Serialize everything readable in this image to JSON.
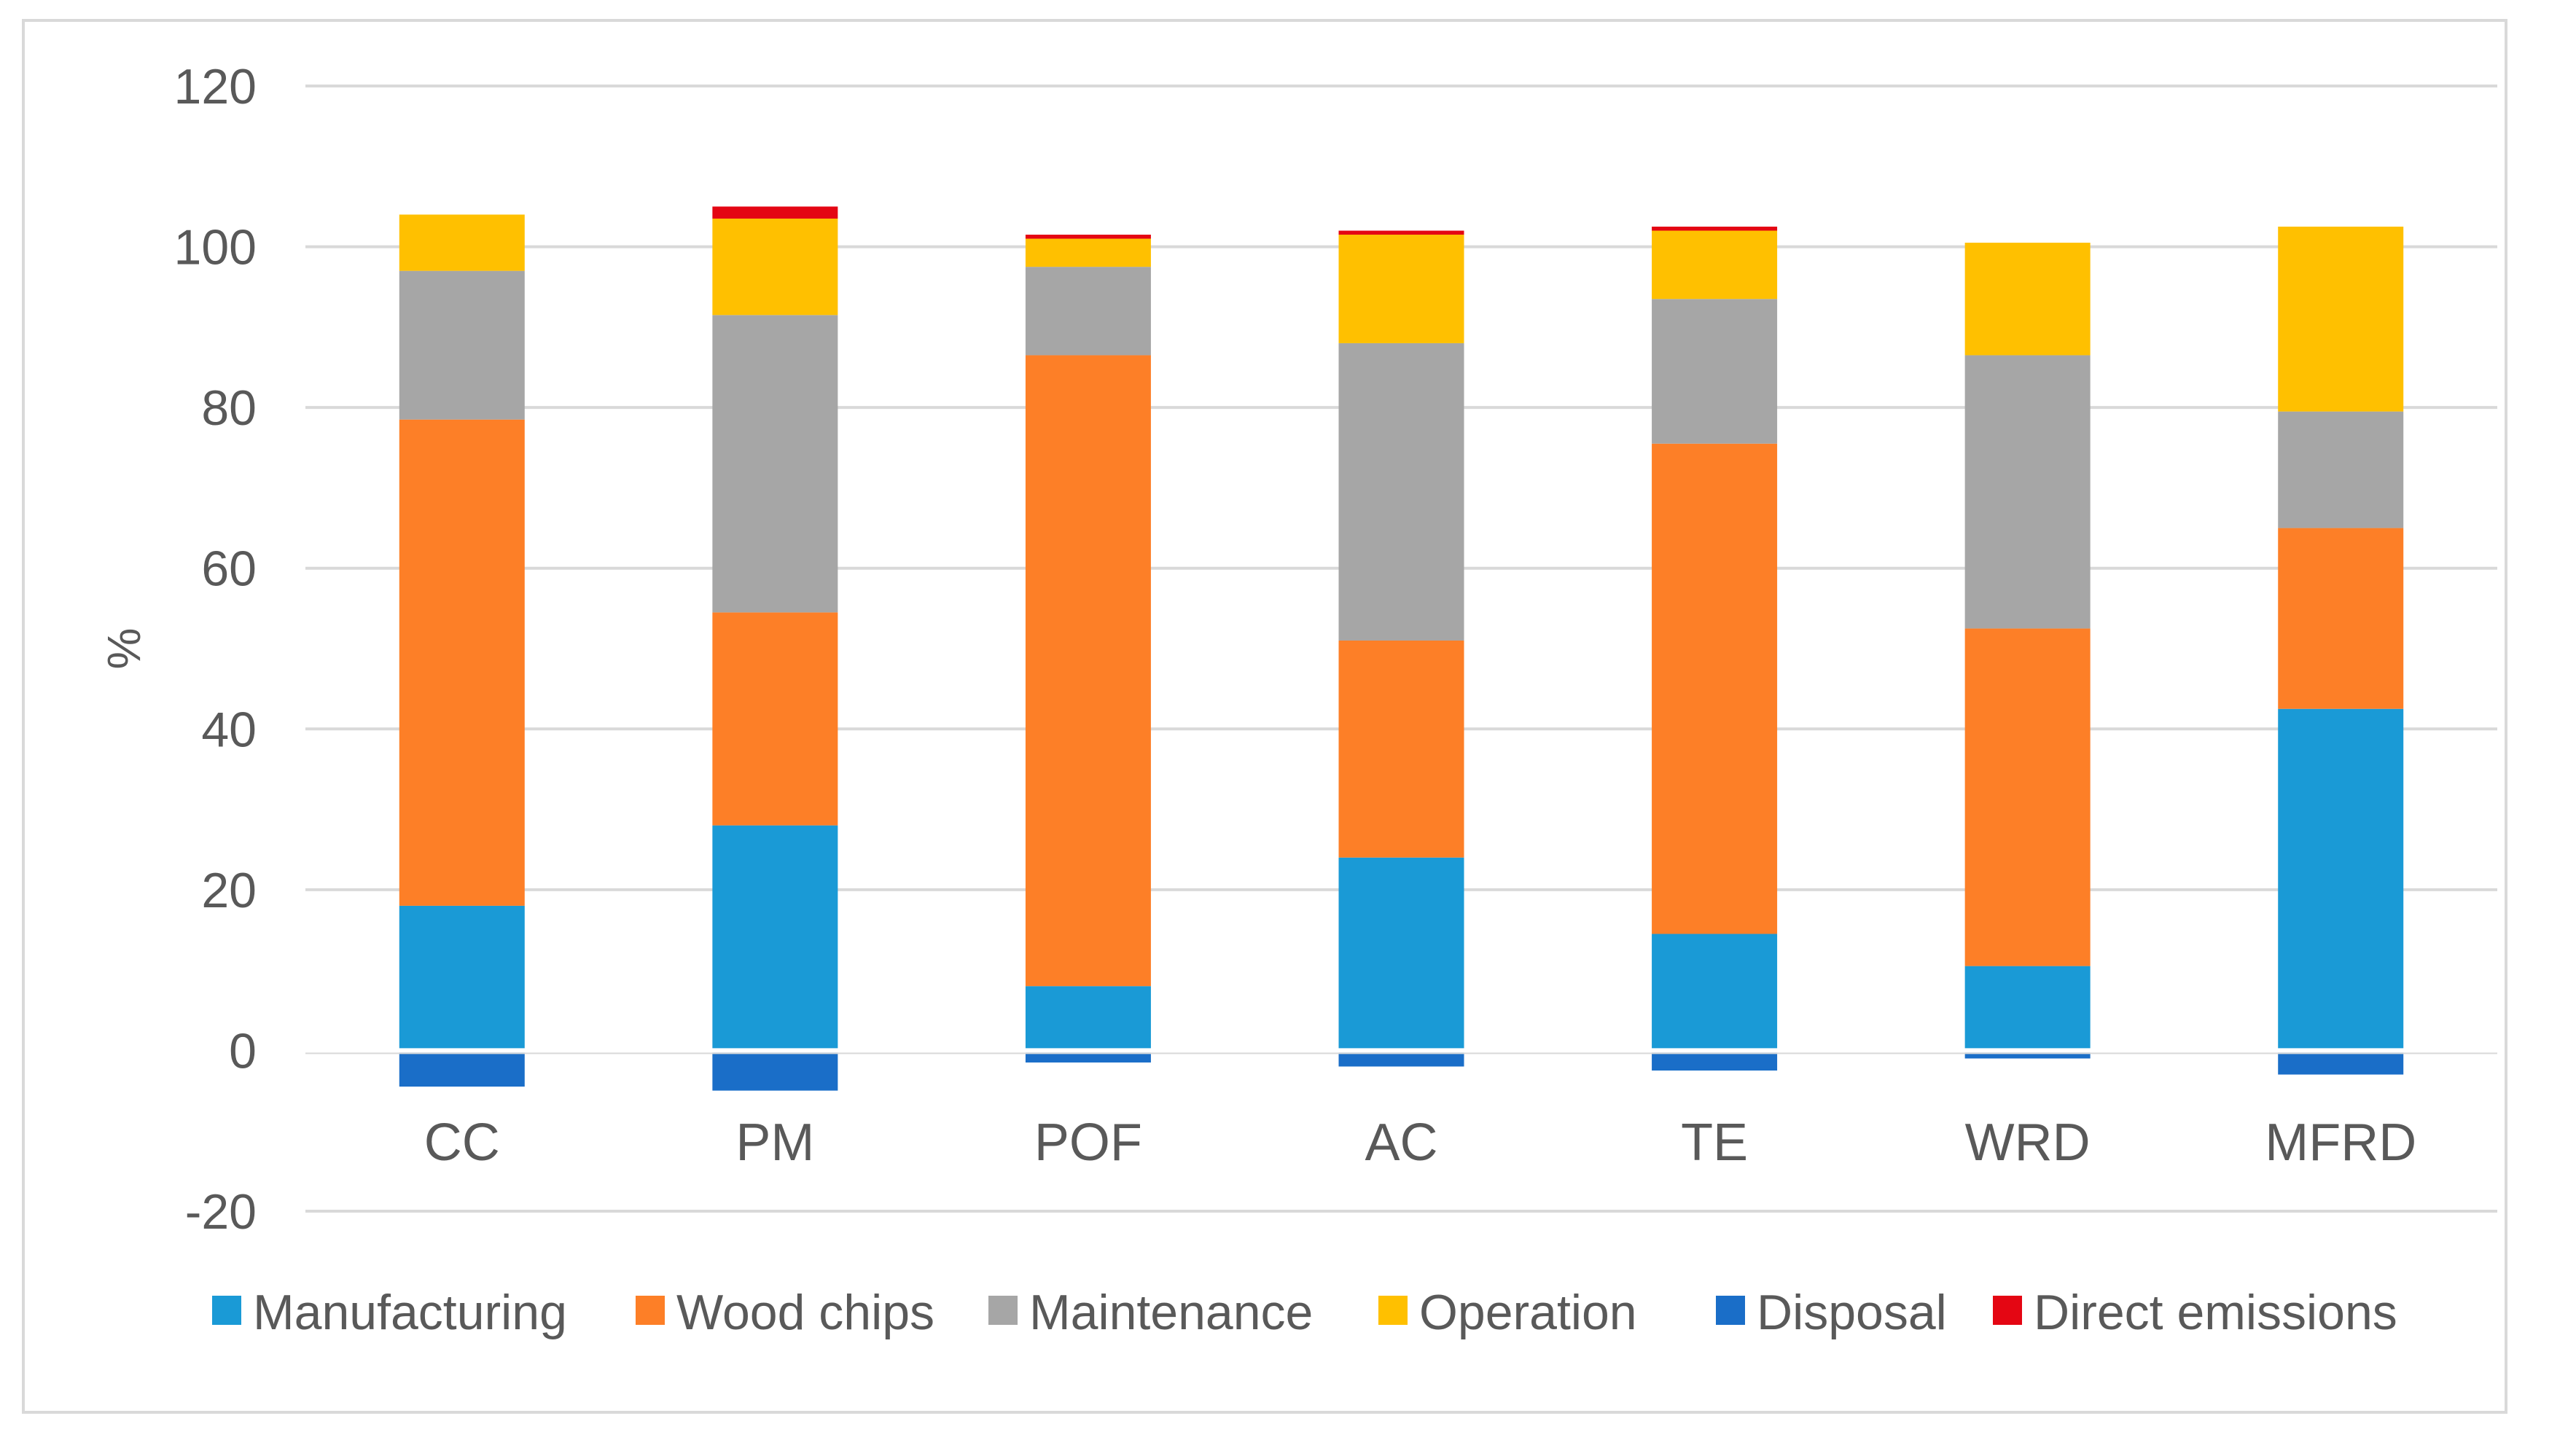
{
  "chart_data": {
    "type": "bar",
    "stacked": true,
    "title": "",
    "xlabel": "",
    "ylabel": "%",
    "ylim": [
      -20,
      120
    ],
    "yticks": [
      120,
      100,
      80,
      60,
      40,
      20,
      0,
      -20
    ],
    "grid": true,
    "legend_position": "bottom",
    "categories": [
      "CC",
      "PM",
      "POF",
      "AC",
      "TE",
      "WRD",
      "MFRD"
    ],
    "series": [
      {
        "name": "Manufacturing",
        "color": "#1a9ad6",
        "values": [
          18,
          28,
          8,
          24,
          14.5,
          10.5,
          42.5
        ]
      },
      {
        "name": "Wood chips",
        "color": "#fd7f27",
        "values": [
          60.5,
          26.5,
          78.5,
          27,
          61,
          42,
          22.5
        ]
      },
      {
        "name": "Maintenance",
        "color": "#a6a6a6",
        "values": [
          18.5,
          37,
          11,
          37,
          18,
          34,
          14.5
        ]
      },
      {
        "name": "Operation",
        "color": "#ffc000",
        "values": [
          7,
          12,
          3.5,
          13.5,
          8.5,
          14,
          23
        ]
      },
      {
        "name": "Disposal",
        "color": "#1a6ec8",
        "values": [
          -4.5,
          -5,
          -1.5,
          -2,
          -2.5,
          -1,
          -3
        ]
      },
      {
        "name": "Direct emissions",
        "color": "#e40613",
        "values": [
          0,
          1.5,
          0.5,
          0.5,
          0.5,
          0,
          0
        ]
      }
    ]
  }
}
